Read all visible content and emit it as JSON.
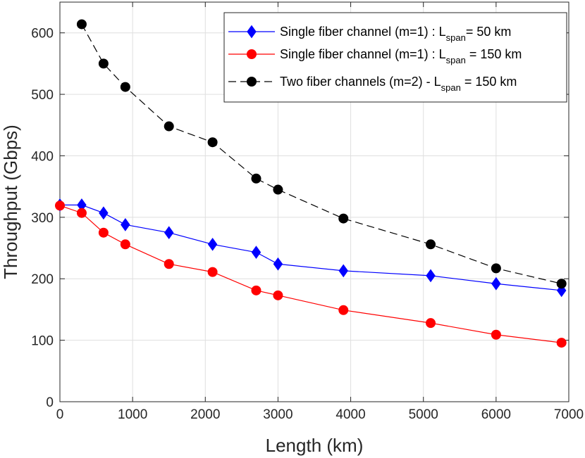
{
  "chart_data": {
    "type": "line",
    "title": "",
    "xlabel": "Length (km)",
    "ylabel": "Throughput (Gbps)",
    "xlim": [
      0,
      7000
    ],
    "ylim": [
      0,
      650
    ],
    "grid": true,
    "legend_position": "top-right",
    "x_ticks": [
      0,
      1000,
      2000,
      3000,
      4000,
      5000,
      6000,
      7000
    ],
    "y_ticks": [
      0,
      100,
      200,
      300,
      400,
      500,
      600
    ],
    "series": [
      {
        "name": "Single fiber channel (m=1) : L_span = 50 km",
        "legend_pre": "Single fiber channel (m=1) : L",
        "legend_sub": "span",
        "legend_post": "= 50 km",
        "color": "#0000ff",
        "marker": "diamond",
        "line_style": "solid",
        "x": [
          0,
          300,
          600,
          900,
          1500,
          2100,
          2700,
          3000,
          3900,
          5100,
          6000,
          6900
        ],
        "y": [
          320,
          320,
          307,
          288,
          275,
          256,
          243,
          224,
          213,
          205,
          192,
          181
        ]
      },
      {
        "name": "Single fiber channel (m=1) : L_span = 150 km",
        "legend_pre": "Single fiber channel (m=1) : L",
        "legend_sub": "span",
        "legend_post": " = 150 km",
        "color": "#ff0000",
        "marker": "circle",
        "line_style": "solid",
        "x": [
          0,
          300,
          600,
          900,
          1500,
          2100,
          2700,
          3000,
          3900,
          5100,
          6000,
          6900
        ],
        "y": [
          319,
          307,
          275,
          256,
          224,
          211,
          181,
          173,
          149,
          128,
          109,
          96
        ]
      },
      {
        "name": "Two fiber channels (m=2) - L_span = 150 km",
        "legend_pre": "Two fiber channels (m=2) - L",
        "legend_sub": "span",
        "legend_post": " = 150 km",
        "color": "#000000",
        "marker": "circle",
        "line_style": "dashed",
        "x": [
          300,
          600,
          900,
          1500,
          2100,
          2700,
          3000,
          3900,
          5100,
          6000,
          6900
        ],
        "y": [
          614,
          550,
          512,
          448,
          422,
          363,
          345,
          298,
          256,
          217,
          192
        ]
      }
    ]
  }
}
